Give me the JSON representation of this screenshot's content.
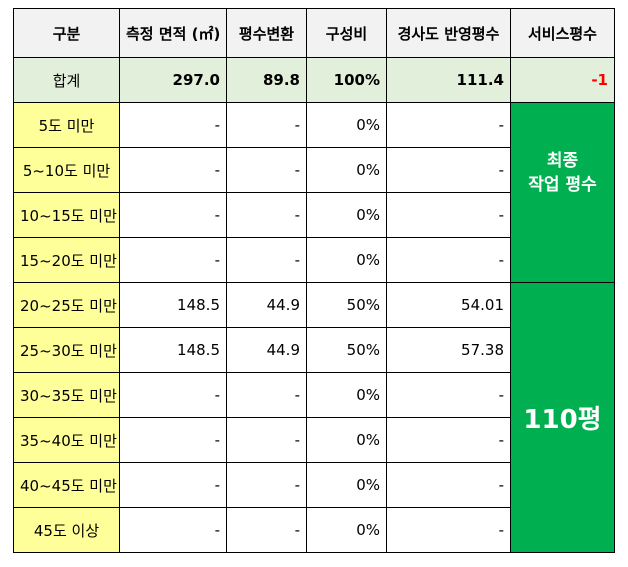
{
  "headers": [
    "구분",
    "측정 면적 (㎡)",
    "평수변환",
    "구성비",
    "경사도 반영평수",
    "서비스평수"
  ],
  "total": {
    "label": "합계",
    "area": "297.0",
    "pyeong": "89.8",
    "ratio": "100%",
    "slope": "111.4",
    "service": "-1"
  },
  "rows": [
    {
      "label": "5도 미만",
      "area": "-",
      "pyeong": "-",
      "ratio": "0%",
      "slope": "-"
    },
    {
      "label": "5~10도 미만",
      "area": "-",
      "pyeong": "-",
      "ratio": "0%",
      "slope": "-"
    },
    {
      "label": "10~15도 미만",
      "area": "-",
      "pyeong": "-",
      "ratio": "0%",
      "slope": "-"
    },
    {
      "label": "15~20도 미만",
      "area": "-",
      "pyeong": "-",
      "ratio": "0%",
      "slope": "-"
    },
    {
      "label": "20~25도 미만",
      "area": "148.5",
      "pyeong": "44.9",
      "ratio": "50%",
      "slope": "54.01"
    },
    {
      "label": "25~30도 미만",
      "area": "148.5",
      "pyeong": "44.9",
      "ratio": "50%",
      "slope": "57.38"
    },
    {
      "label": "30~35도 미만",
      "area": "-",
      "pyeong": "-",
      "ratio": "0%",
      "slope": "-"
    },
    {
      "label": "35~40도 미만",
      "area": "-",
      "pyeong": "-",
      "ratio": "0%",
      "slope": "-"
    },
    {
      "label": "40~45도 미만",
      "area": "-",
      "pyeong": "-",
      "ratio": "0%",
      "slope": "-"
    },
    {
      "label": "45도 이상",
      "area": "-",
      "pyeong": "-",
      "ratio": "0%",
      "slope": "-"
    }
  ],
  "side_panel": {
    "line1": "최종",
    "line2": "작업 평수",
    "value": "110평"
  },
  "colors": {
    "header_bg": "#f2f2f2",
    "total_bg": "#e2efda",
    "label_bg": "#ffff99",
    "side_bg": "#00b050",
    "negative": "#ff0000"
  }
}
